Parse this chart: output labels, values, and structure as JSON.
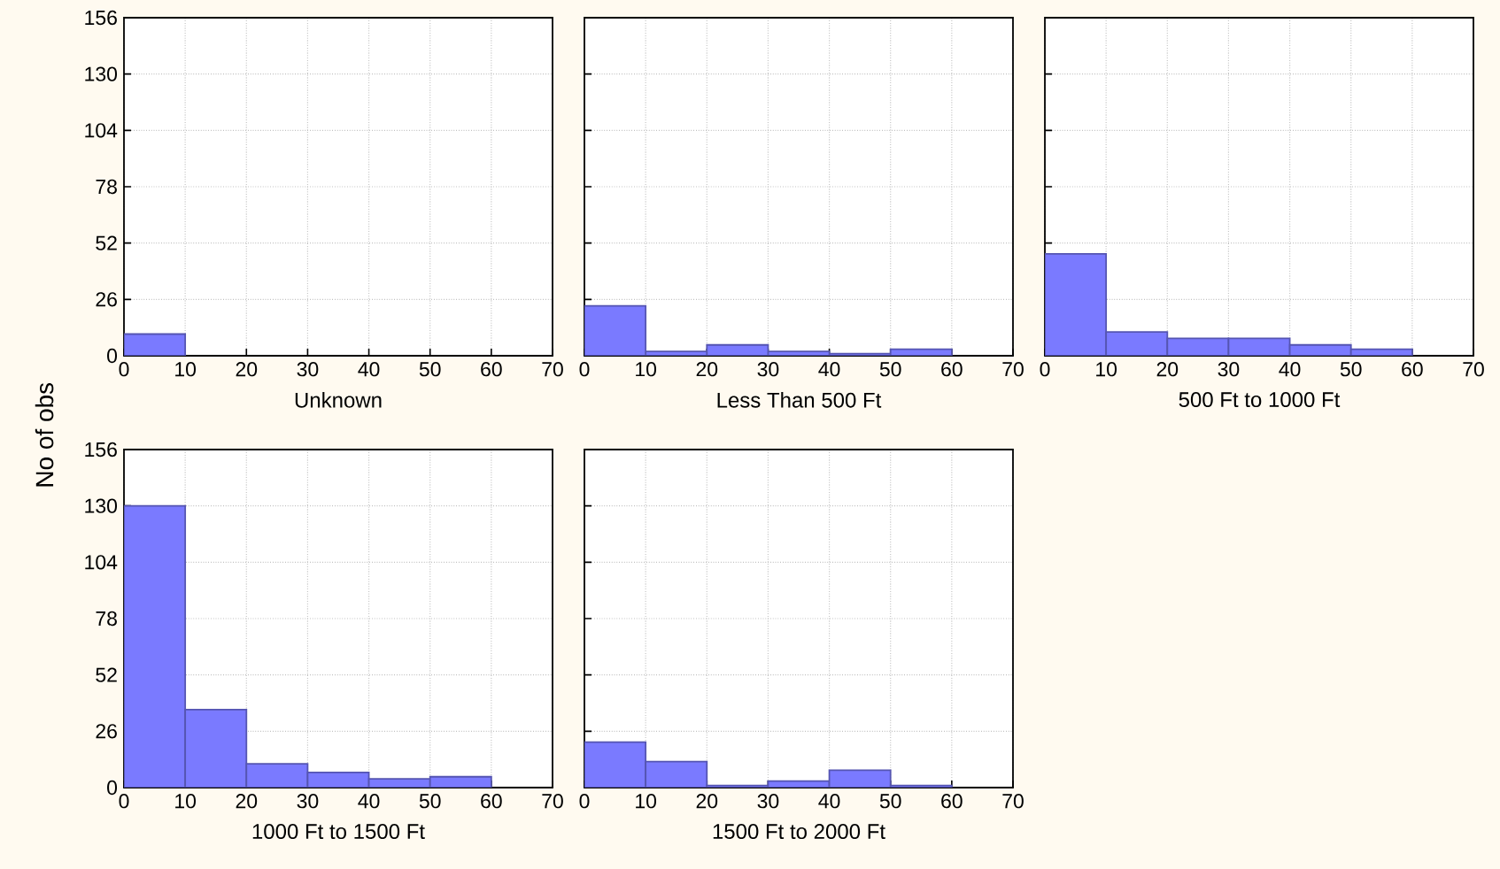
{
  "chart_data": [
    {
      "type": "histogram",
      "xlabel": "Unknown",
      "ylabel": "No of obs",
      "bins": [
        0,
        10
      ],
      "values": [
        10
      ],
      "color": "#7a7aff",
      "xlim": [
        0,
        70
      ],
      "ylim": [
        0,
        156
      ],
      "xticks": [
        0,
        10,
        20,
        30,
        40,
        50,
        60,
        70
      ],
      "yticks": [
        0,
        26,
        52,
        78,
        104,
        130,
        156
      ],
      "grid": true
    },
    {
      "type": "histogram",
      "xlabel": "Less Than 500 Ft",
      "bins": [
        0,
        10,
        20,
        30,
        40,
        50,
        60
      ],
      "values": [
        23,
        2,
        5,
        2,
        1,
        3
      ],
      "color": "#7a7aff",
      "xlim": [
        0,
        70
      ],
      "ylim": [
        0,
        156
      ],
      "xticks": [
        0,
        10,
        20,
        30,
        40,
        50,
        60,
        70
      ],
      "yticks": [
        0,
        26,
        52,
        78,
        104,
        130,
        156
      ],
      "grid": true,
      "tick_labels": "x"
    },
    {
      "type": "histogram",
      "xlabel": "500 Ft to 1000 Ft",
      "bins": [
        0,
        10,
        20,
        30,
        40,
        50,
        60
      ],
      "values": [
        47,
        11,
        8,
        8,
        5,
        3
      ],
      "color": "#7a7aff",
      "xlim": [
        0,
        70
      ],
      "ylim": [
        0,
        156
      ],
      "xticks": [
        0,
        10,
        20,
        30,
        40,
        50,
        60,
        70
      ],
      "yticks": [
        0,
        26,
        52,
        78,
        104,
        130,
        156
      ],
      "grid": true,
      "tick_labels": "x"
    },
    {
      "type": "histogram",
      "xlabel": "1000 Ft to 1500 Ft",
      "bins": [
        0,
        10,
        20,
        30,
        40,
        50,
        60
      ],
      "values": [
        130,
        36,
        11,
        7,
        4,
        5
      ],
      "color": "#7a7aff",
      "xlim": [
        0,
        70
      ],
      "ylim": [
        0,
        156
      ],
      "xticks": [
        0,
        10,
        20,
        30,
        40,
        50,
        60,
        70
      ],
      "yticks": [
        0,
        26,
        52,
        78,
        104,
        130,
        156
      ],
      "grid": true
    },
    {
      "type": "histogram",
      "xlabel": "1500 Ft to 2000 Ft",
      "bins": [
        0,
        10,
        20,
        30,
        40,
        50,
        60
      ],
      "values": [
        21,
        12,
        1,
        3,
        8,
        1
      ],
      "color": "#7a7aff",
      "xlim": [
        0,
        70
      ],
      "ylim": [
        0,
        156
      ],
      "xticks": [
        0,
        10,
        20,
        30,
        40,
        50,
        60,
        70
      ],
      "yticks": [
        0,
        26,
        52,
        78,
        104,
        130,
        156
      ],
      "grid": true,
      "tick_labels": "x"
    }
  ]
}
